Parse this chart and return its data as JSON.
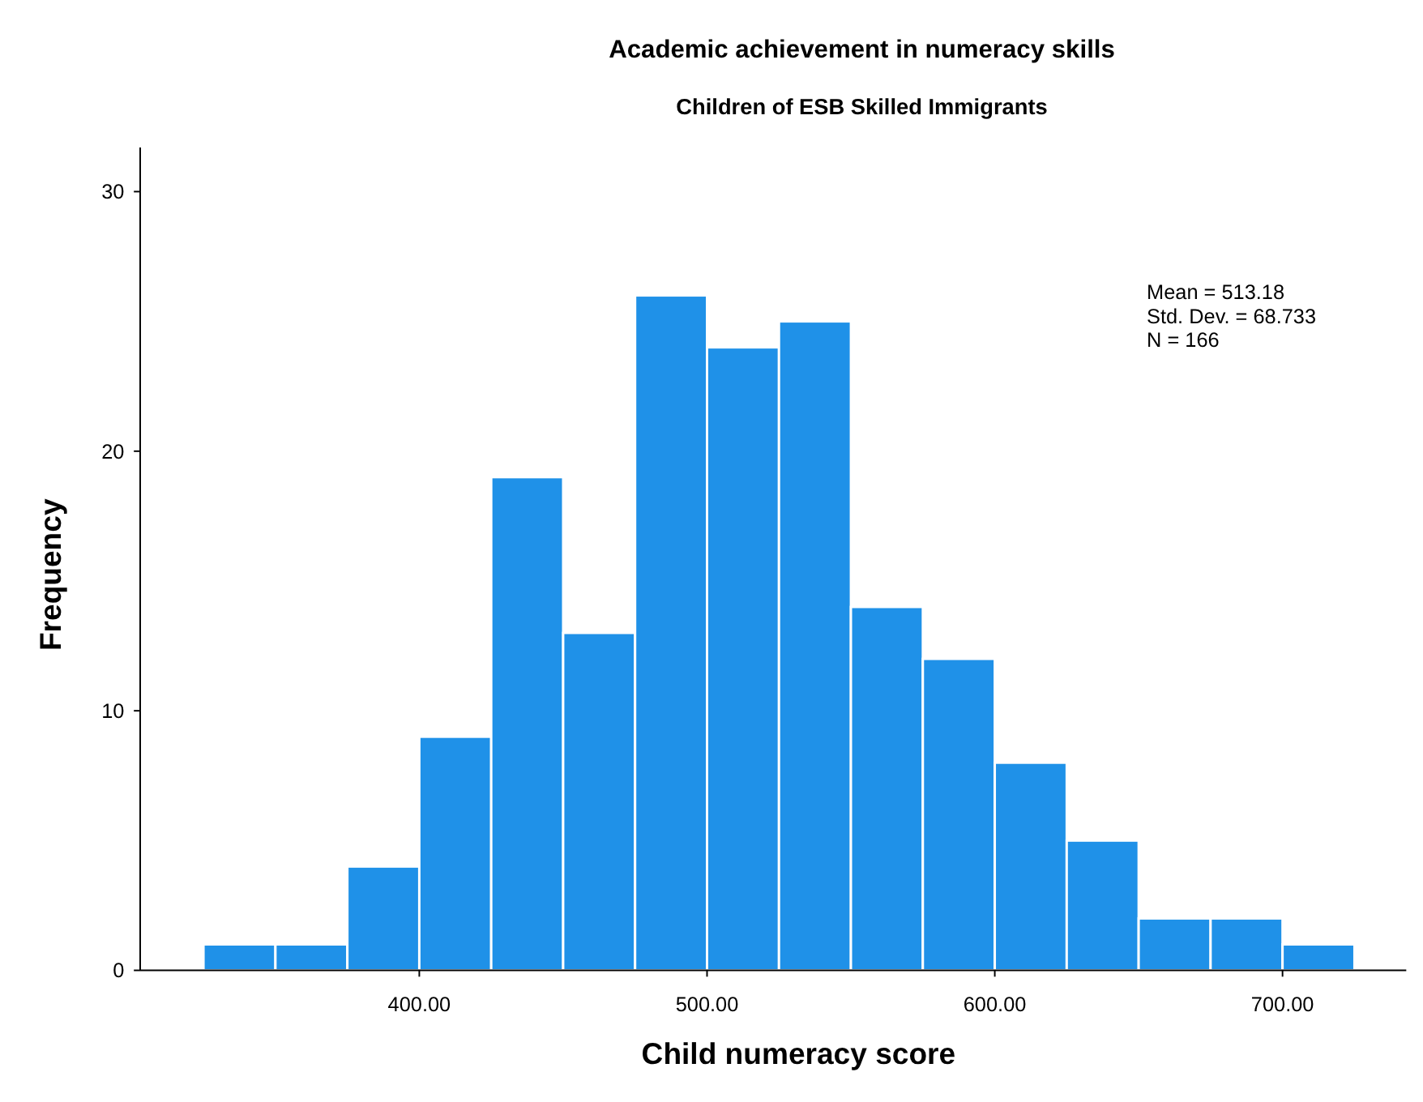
{
  "chart_data": {
    "type": "histogram",
    "title": "Academic achievement in numeracy skills",
    "subtitle": "Children of ESB Skilled Immigrants",
    "xlabel": "Child numeracy score",
    "ylabel": "Frequency",
    "bins": [
      325,
      350,
      375,
      400,
      425,
      450,
      475,
      500,
      525,
      550,
      575,
      600,
      625,
      650,
      675,
      700,
      725
    ],
    "values": [
      1,
      1,
      4,
      9,
      19,
      13,
      26,
      24,
      25,
      14,
      12,
      8,
      5,
      2,
      2,
      1
    ],
    "color": "#1f91e8",
    "xlim": [
      303,
      743
    ],
    "xticks": [
      {
        "value": 400,
        "label": "400.00"
      },
      {
        "value": 500,
        "label": "500.00"
      },
      {
        "value": 600,
        "label": "600.00"
      },
      {
        "value": 700,
        "label": "700.00"
      }
    ],
    "ylim": [
      0,
      31.7
    ],
    "yticks": [
      0,
      10,
      20,
      30
    ],
    "annotations": [
      "Mean = 513.18",
      "Std. Dev. = 68.733",
      "N = 166"
    ],
    "grid": false
  }
}
